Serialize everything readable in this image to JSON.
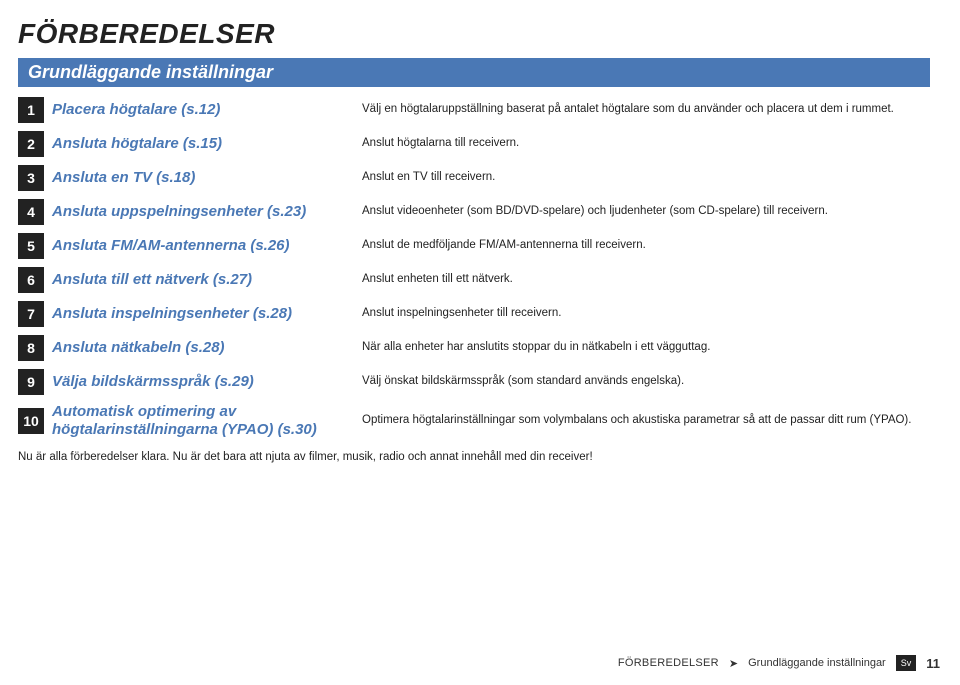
{
  "title": "FÖRBEREDELSER",
  "section": "Grundläggande inställningar",
  "steps": [
    {
      "n": "1",
      "label": "Placera högtalare (s.12)",
      "desc": "Välj en högtalaruppställning baserat på antalet högtalare som du använder och placera ut dem i rummet."
    },
    {
      "n": "2",
      "label": "Ansluta högtalare (s.15)",
      "desc": "Anslut högtalarna till receivern."
    },
    {
      "n": "3",
      "label": "Ansluta en TV (s.18)",
      "desc": "Anslut en TV till receivern."
    },
    {
      "n": "4",
      "label": "Ansluta uppspelningsenheter (s.23)",
      "desc": "Anslut videoenheter (som BD/DVD-spelare) och ljudenheter (som CD-spelare) till receivern."
    },
    {
      "n": "5",
      "label": "Ansluta FM/AM-antennerna (s.26)",
      "desc": "Anslut de medföljande FM/AM-antennerna till receivern."
    },
    {
      "n": "6",
      "label": "Ansluta till ett nätverk (s.27)",
      "desc": "Anslut enheten till ett nätverk."
    },
    {
      "n": "7",
      "label": "Ansluta inspelningsenheter (s.28)",
      "desc": "Anslut inspelningsenheter till receivern."
    },
    {
      "n": "8",
      "label": "Ansluta nätkabeln (s.28)",
      "desc": "När alla enheter har anslutits stoppar du in nätkabeln i ett vägguttag."
    },
    {
      "n": "9",
      "label": "Välja bildskärmsspråk (s.29)",
      "desc": "Välj önskat bildskärmsspråk (som standard används engelska)."
    },
    {
      "n": "10",
      "label": "Automatisk optimering av högtalarinställningarna (YPAO) (s.30)",
      "desc": "Optimera högtalarinställningar som volymbalans och akustiska parametrar så att de passar ditt rum (YPAO)."
    }
  ],
  "closing": "Nu är alla förberedelser klara. Nu är det bara att njuta av filmer, musik, radio och annat innehåll med din receiver!",
  "footer": {
    "bc1": "FÖRBEREDELSER",
    "arrow": "➤",
    "bc2": "Grundläggande inställningar",
    "lang": "Sv",
    "page": "11"
  },
  "colors": {
    "accent": "#4a78b5",
    "dark": "#222222",
    "text": "#222222",
    "bg": "#ffffff"
  }
}
